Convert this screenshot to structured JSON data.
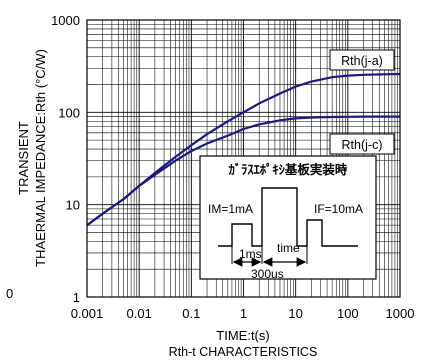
{
  "chart_data": {
    "type": "line",
    "title": "",
    "subtitle": "Rth-t CHARACTERISTICS",
    "xlabel": "TIME:t(s)",
    "ylabel_line1": "TRANSIENT",
    "ylabel_line2": "THAERMAL IMPEDANCE:Rth (°C/W)",
    "x_scale": "log",
    "y_scale": "log",
    "xlim": [
      0.001,
      1000
    ],
    "ylim": [
      1,
      1000
    ],
    "x_ticks": [
      0.001,
      0.01,
      0.1,
      1,
      10,
      100,
      1000
    ],
    "x_tick_labels": [
      "0.001",
      "0.01",
      "0.1",
      "1",
      "10",
      "100",
      "1000"
    ],
    "y_ticks": [
      1,
      10,
      100,
      1000
    ],
    "y_tick_labels": [
      "1",
      "10",
      "100",
      "1000"
    ],
    "grid": true,
    "stray_tick_label": "0",
    "series": [
      {
        "name": "Rth(j-a)",
        "color": "#1a1a80",
        "x": [
          0.001,
          0.002,
          0.005,
          0.01,
          0.02,
          0.05,
          0.1,
          0.2,
          0.5,
          1,
          2,
          5,
          10,
          20,
          50,
          100,
          200,
          500,
          1000
        ],
        "y": [
          6,
          8,
          11.5,
          16,
          22,
          33,
          44,
          58,
          80,
          100,
          125,
          160,
          190,
          215,
          240,
          250,
          255,
          258,
          260
        ]
      },
      {
        "name": "Rth(j-c)",
        "color": "#1a1a80",
        "x": [
          0.001,
          0.002,
          0.005,
          0.01,
          0.02,
          0.05,
          0.1,
          0.2,
          0.5,
          1,
          2,
          5,
          10,
          20,
          50,
          100,
          200,
          500,
          1000
        ],
        "y": [
          6,
          8,
          11.5,
          16,
          21,
          30,
          38,
          46,
          56,
          66,
          74,
          82,
          86,
          88,
          89,
          89.5,
          90,
          90,
          90
        ]
      }
    ],
    "inset": {
      "title": "ｶﾞﾗｽｴﾎﾟｷｼ基板実装時",
      "im_label": "IM=1mA",
      "if_label": "IF=10mA",
      "time_label": "time",
      "pulse_1ms": "1ms",
      "pulse_300us": "300us"
    }
  }
}
